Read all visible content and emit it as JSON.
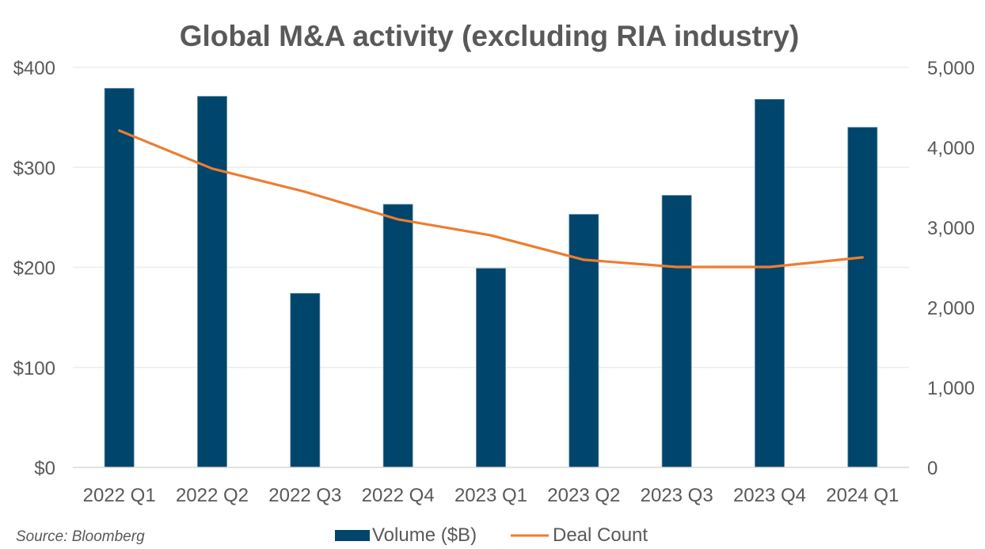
{
  "chart_data": {
    "type": "bar",
    "title": "Global M&A activity (excluding RIA industry)",
    "categories": [
      "2022 Q1",
      "2022 Q2",
      "2022 Q3",
      "2022 Q4",
      "2023 Q1",
      "2023 Q2",
      "2023 Q3",
      "2023 Q4",
      "2024 Q1"
    ],
    "series": [
      {
        "name": "Volume ($B)",
        "type": "bar",
        "axis": "left",
        "color": "#00456B",
        "values": [
          379,
          371,
          174,
          263,
          199,
          253,
          272,
          368,
          340
        ]
      },
      {
        "name": "Deal Count",
        "type": "line",
        "axis": "right",
        "color": "#ED7D31",
        "values": [
          4210,
          3735,
          3445,
          3100,
          2900,
          2595,
          2505,
          2505,
          2625
        ]
      }
    ],
    "y_left": {
      "label": "",
      "ylim": [
        0,
        400
      ],
      "ticks": [
        0,
        100,
        200,
        300,
        400
      ],
      "tick_labels": [
        "$0",
        "$100",
        "$200",
        "$300",
        "$400"
      ]
    },
    "y_right": {
      "label": "",
      "ylim": [
        0,
        5000
      ],
      "ticks": [
        0,
        1000,
        2000,
        3000,
        4000,
        5000
      ],
      "tick_labels": [
        "0",
        "1,000",
        "2,000",
        "3,000",
        "4,000",
        "5,000"
      ]
    },
    "xlabel": "",
    "grid": true,
    "legend_position": "bottom",
    "source": "Source: Bloomberg"
  }
}
